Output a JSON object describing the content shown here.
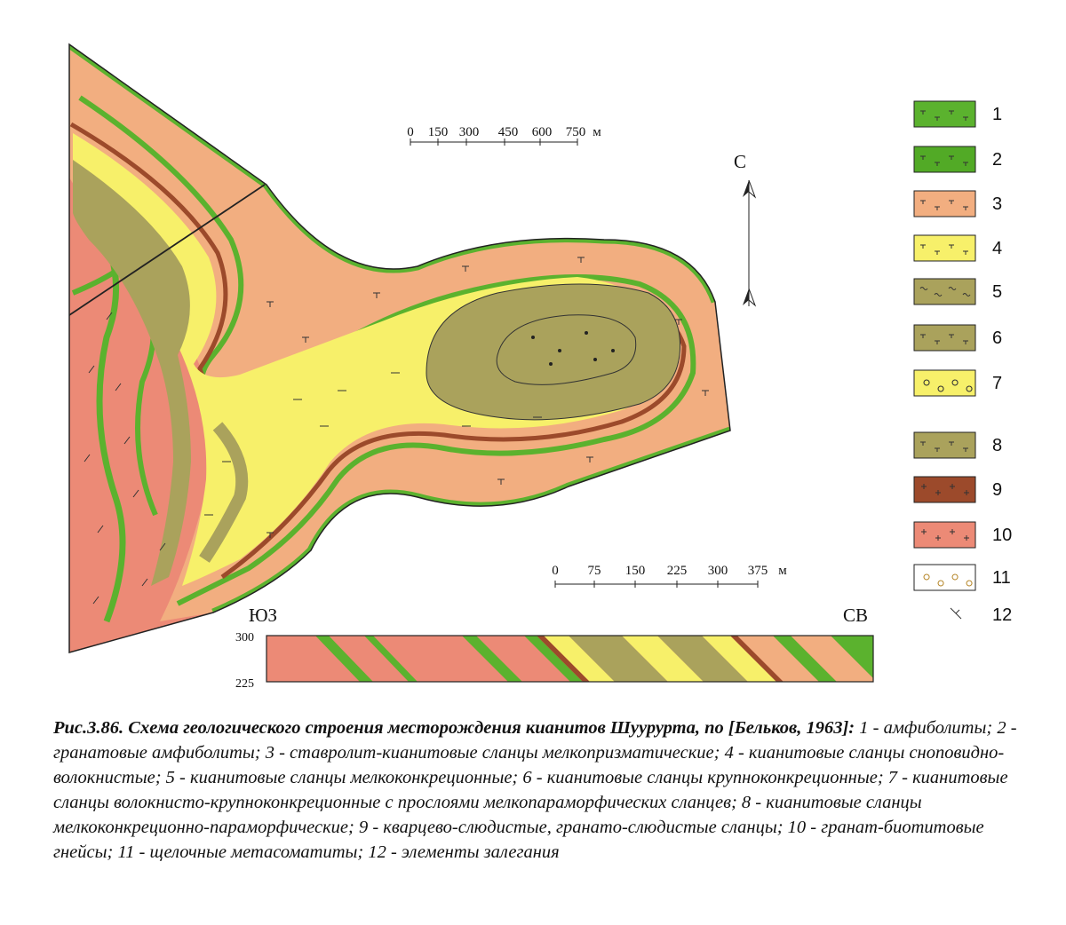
{
  "colors": {
    "amphibolite": "#5bb22e",
    "staurolite_kyanite": "#f2ae80",
    "yellow": "#f7f06a",
    "olive": "#aaa25c",
    "brown": "#9c4a2b",
    "gneiss": "#ec8a76",
    "outline": "#222222"
  },
  "legend": [
    {
      "num": "1",
      "fill": "#5bb22e",
      "pattern": "dash-ticks"
    },
    {
      "num": "2",
      "fill": "#52aa26",
      "pattern": "dash-ticks-dots"
    },
    {
      "num": "3",
      "fill": "#f2ae80",
      "pattern": "t-ticks"
    },
    {
      "num": "4",
      "fill": "#f7f06a",
      "pattern": "dash-dot"
    },
    {
      "num": "5",
      "fill": "#aaa25c",
      "pattern": "waves"
    },
    {
      "num": "6",
      "fill": "#aaa25c",
      "pattern": "dots-waves"
    },
    {
      "num": "7",
      "fill": "#f7f06a",
      "pattern": "circles"
    },
    {
      "num": "8",
      "fill": "#aaa25c",
      "pattern": "dashes"
    },
    {
      "num": "9",
      "fill": "#9c4a2b",
      "pattern": "crosses"
    },
    {
      "num": "10",
      "fill": "#ec8a76",
      "pattern": "plus-dash"
    },
    {
      "num": "11",
      "fill": "#ffffff",
      "pattern": "circles-open"
    },
    {
      "num": "12",
      "fill": "none",
      "pattern": "strike-dip"
    }
  ],
  "scale_top": {
    "ticks": [
      "0",
      "150",
      "300",
      "450",
      "600",
      "750"
    ],
    "unit": "м"
  },
  "scale_bottom": {
    "ticks": [
      "0",
      "75",
      "150",
      "225",
      "300",
      "375"
    ],
    "unit": "м"
  },
  "north_label": "С",
  "section": {
    "left_label": "ЮЗ",
    "right_label": "СВ",
    "elev_top": "300",
    "elev_bottom": "225"
  },
  "caption": {
    "title": "Рис.3.86. Схема геологического строения месторождения кианитов Шуурурта, по [Бельков, 1963]:",
    "body": "1 - амфиболиты; 2 - гранатовые амфиболиты; 3 - ставролит-кианитовые сланцы мелкопризматические; 4 - кианитовые сланцы сноповидно-волокнистые; 5 - кианитовые сланцы мелкоконкреционные; 6 - кианитовые сланцы крупноконкреционные; 7 - кианитовые сланцы волокнисто-крупноконкреционные с прослоями мелкопараморфических сланцев; 8 - кианитовые сланцы мелкоконкреционно-параморфические; 9 - кварцево-слюдистые, гранато-слюдистые сланцы; 10 - гранат-биотитовые гнейсы; 11 - щелочные метасоматиты; 12 - элементы залегания"
  }
}
